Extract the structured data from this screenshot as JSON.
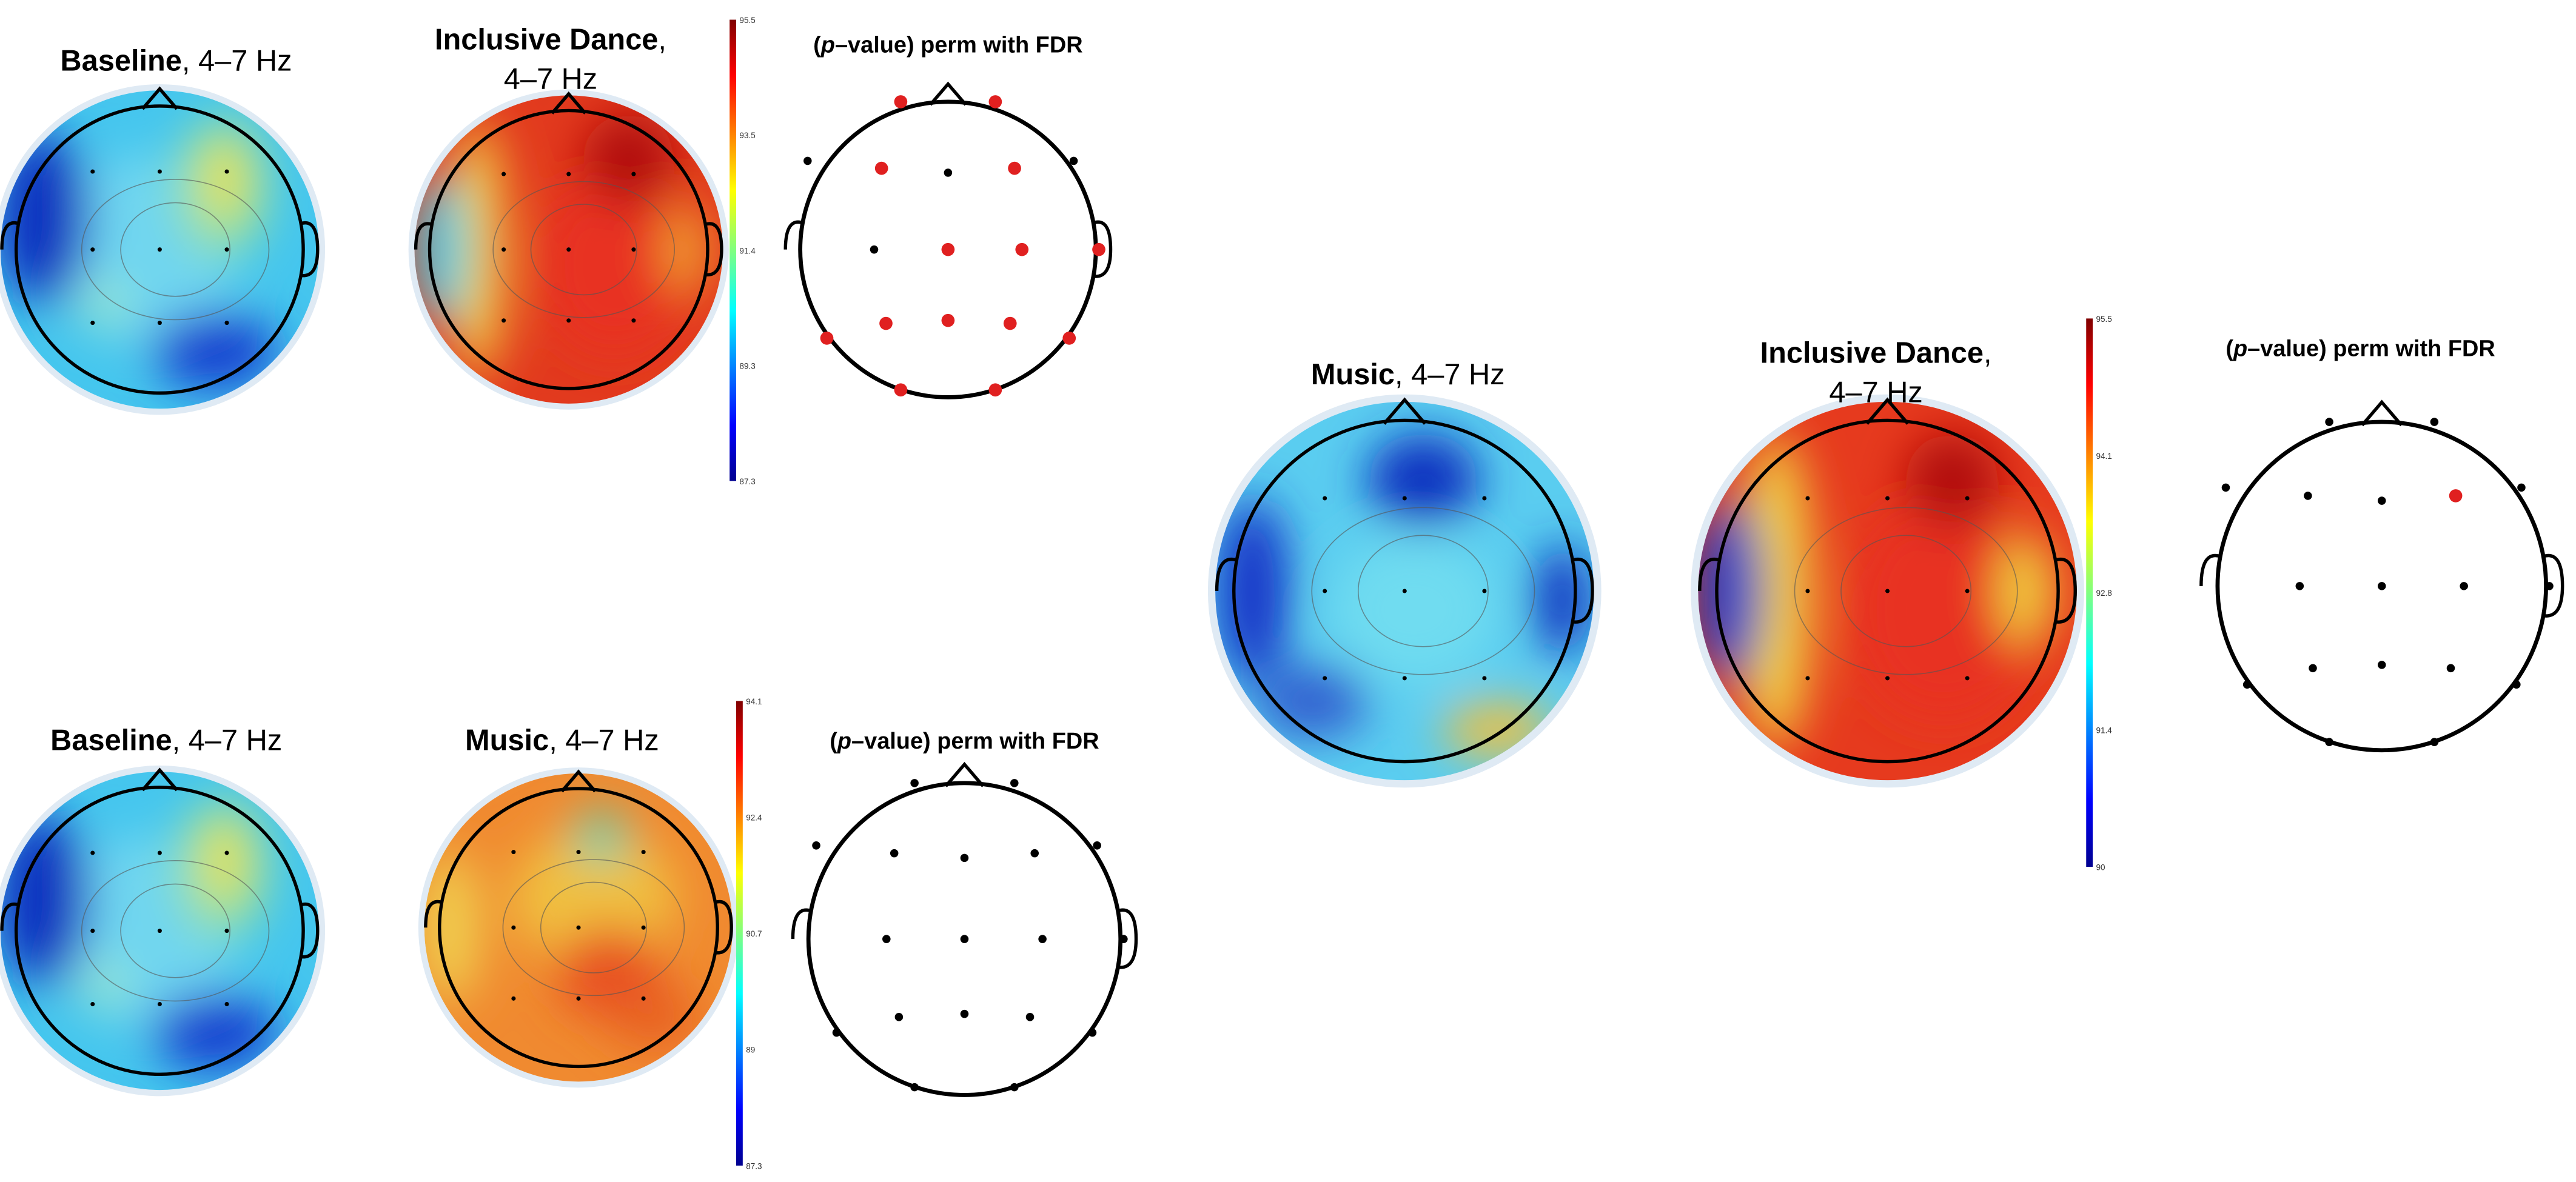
{
  "groups": [
    {
      "maps": [
        {
          "title_bold": "Baseline",
          "title_rest": ", 4–7 Hz"
        },
        {
          "title_bold": "Inclusive Dance",
          "title_rest": ",",
          "title_line2": "4–7 Hz"
        }
      ],
      "colorbar_ticks": [
        "95.5",
        "93.5",
        "91.4",
        "89.3",
        "87.3"
      ],
      "stats_title": [
        "(",
        "p",
        "–value) perm with FDR"
      ]
    },
    {
      "maps": [
        {
          "title_bold": "Baseline",
          "title_rest": ", 4–7 Hz"
        },
        {
          "title_bold": "Music",
          "title_rest": ", 4–7 Hz"
        }
      ],
      "colorbar_ticks": [
        "94.1",
        "92.4",
        "90.7",
        "89",
        "87.3"
      ],
      "stats_title": [
        "(",
        "p",
        "–value) perm with FDR"
      ]
    },
    {
      "maps": [
        {
          "title_bold": "Music",
          "title_rest": ", 4–7 Hz"
        },
        {
          "title_bold": "Inclusive Dance",
          "title_rest": ",",
          "title_line2": "4–7 Hz"
        }
      ],
      "colorbar_ticks": [
        "95.5",
        "94.1",
        "92.8",
        "91.4",
        "90"
      ],
      "stats_title": [
        "(",
        "p",
        "–value) perm with FDR"
      ]
    }
  ]
}
